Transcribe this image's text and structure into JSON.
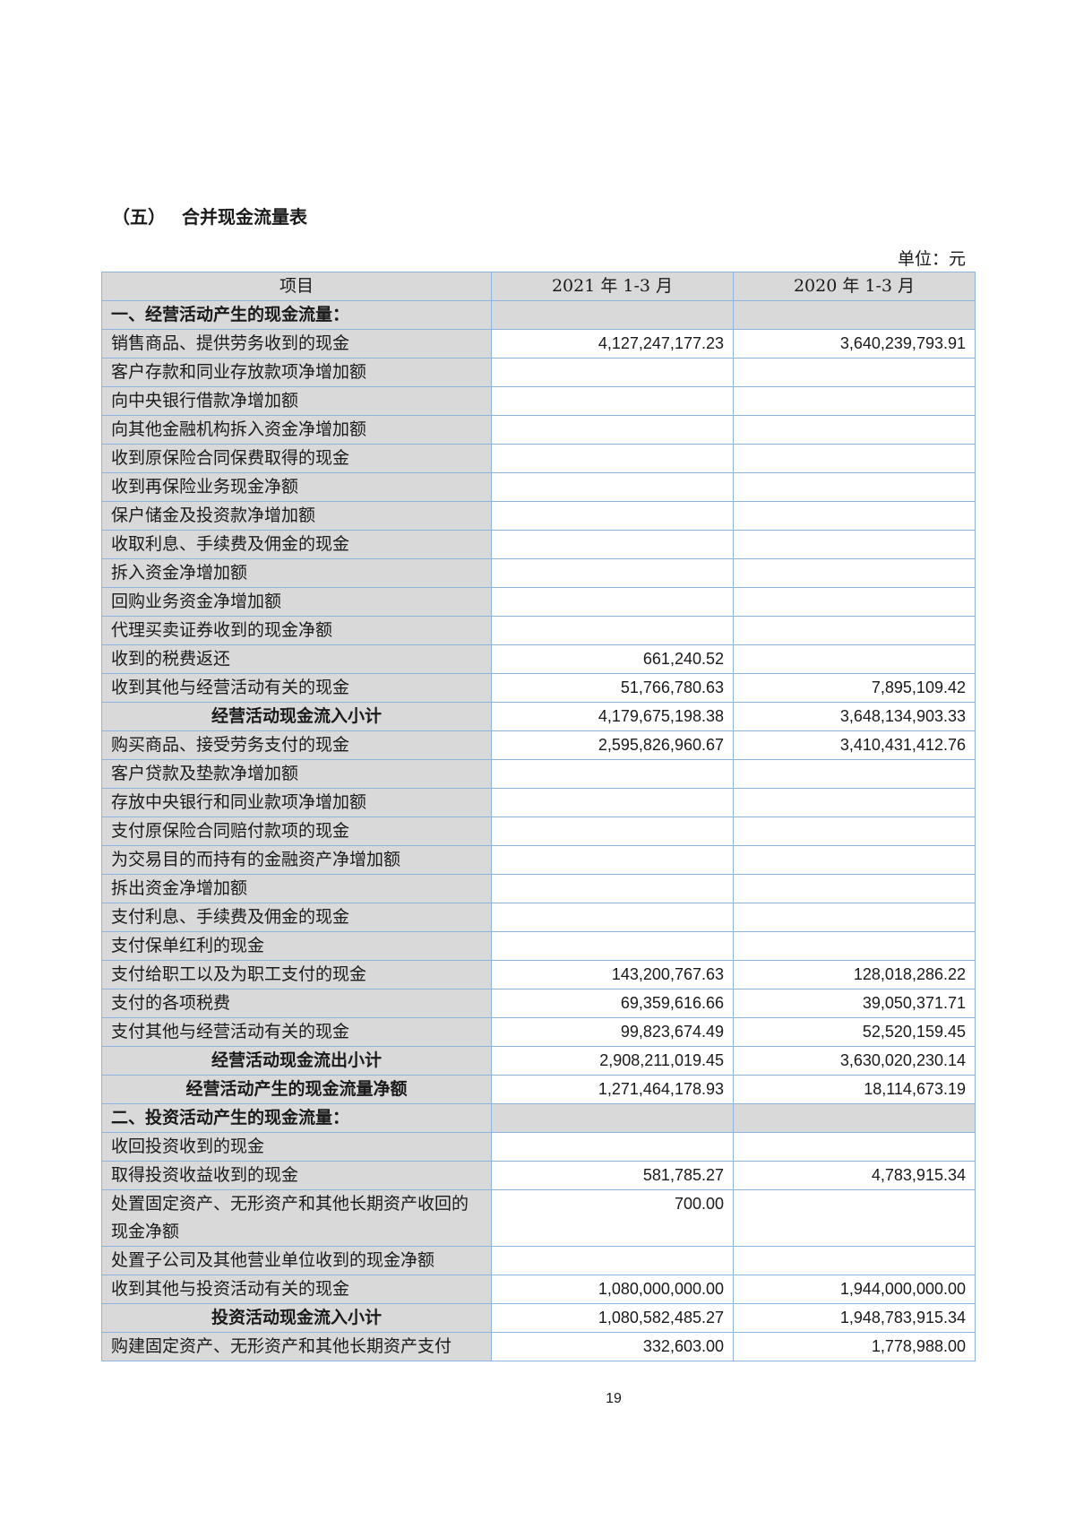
{
  "section_no": "（五）",
  "title": "合并现金流量表",
  "unit": "单位：元",
  "headers": [
    "项目",
    "2021 年 1-3 月",
    "2020 年 1-3 月"
  ],
  "rows": [
    {
      "type": "sec",
      "label": "一、经营活动产生的现金流量：",
      "v2021": "",
      "v2020": ""
    },
    {
      "type": "item",
      "label": "销售商品、提供劳务收到的现金",
      "v2021": "4,127,247,177.23",
      "v2020": "3,640,239,793.91"
    },
    {
      "type": "item",
      "label": "客户存款和同业存放款项净增加额",
      "v2021": "",
      "v2020": ""
    },
    {
      "type": "item",
      "label": "向中央银行借款净增加额",
      "v2021": "",
      "v2020": ""
    },
    {
      "type": "item",
      "label": "向其他金融机构拆入资金净增加额",
      "v2021": "",
      "v2020": ""
    },
    {
      "type": "item",
      "label": "收到原保险合同保费取得的现金",
      "v2021": "",
      "v2020": ""
    },
    {
      "type": "item",
      "label": "收到再保险业务现金净额",
      "v2021": "",
      "v2020": ""
    },
    {
      "type": "item",
      "label": "保户储金及投资款净增加额",
      "v2021": "",
      "v2020": ""
    },
    {
      "type": "item",
      "label": "收取利息、手续费及佣金的现金",
      "v2021": "",
      "v2020": ""
    },
    {
      "type": "item",
      "label": "拆入资金净增加额",
      "v2021": "",
      "v2020": ""
    },
    {
      "type": "item",
      "label": "回购业务资金净增加额",
      "v2021": "",
      "v2020": ""
    },
    {
      "type": "item",
      "label": "代理买卖证券收到的现金净额",
      "v2021": "",
      "v2020": ""
    },
    {
      "type": "item",
      "label": "收到的税费返还",
      "v2021": "661,240.52",
      "v2020": ""
    },
    {
      "type": "item",
      "label": "收到其他与经营活动有关的现金",
      "v2021": "51,766,780.63",
      "v2020": "7,895,109.42"
    },
    {
      "type": "sub",
      "label": "经营活动现金流入小计",
      "v2021": "4,179,675,198.38",
      "v2020": "3,648,134,903.33"
    },
    {
      "type": "item",
      "label": "购买商品、接受劳务支付的现金",
      "v2021": "2,595,826,960.67",
      "v2020": "3,410,431,412.76"
    },
    {
      "type": "item",
      "label": "客户贷款及垫款净增加额",
      "v2021": "",
      "v2020": ""
    },
    {
      "type": "item",
      "label": "存放中央银行和同业款项净增加额",
      "v2021": "",
      "v2020": ""
    },
    {
      "type": "item",
      "label": "支付原保险合同赔付款项的现金",
      "v2021": "",
      "v2020": ""
    },
    {
      "type": "item",
      "label": "为交易目的而持有的金融资产净增加额",
      "v2021": "",
      "v2020": ""
    },
    {
      "type": "item",
      "label": "拆出资金净增加额",
      "v2021": "",
      "v2020": ""
    },
    {
      "type": "item",
      "label": "支付利息、手续费及佣金的现金",
      "v2021": "",
      "v2020": ""
    },
    {
      "type": "item",
      "label": "支付保单红利的现金",
      "v2021": "",
      "v2020": ""
    },
    {
      "type": "item",
      "label": "支付给职工以及为职工支付的现金",
      "v2021": "143,200,767.63",
      "v2020": "128,018,286.22"
    },
    {
      "type": "item",
      "label": "支付的各项税费",
      "v2021": "69,359,616.66",
      "v2020": "39,050,371.71"
    },
    {
      "type": "item",
      "label": "支付其他与经营活动有关的现金",
      "v2021": "99,823,674.49",
      "v2020": "52,520,159.45"
    },
    {
      "type": "sub",
      "label": "经营活动现金流出小计",
      "v2021": "2,908,211,019.45",
      "v2020": "3,630,020,230.14"
    },
    {
      "type": "sub",
      "label": "经营活动产生的现金流量净额",
      "v2021": "1,271,464,178.93",
      "v2020": "18,114,673.19"
    },
    {
      "type": "sec",
      "label": "二、投资活动产生的现金流量：",
      "v2021": "",
      "v2020": ""
    },
    {
      "type": "item",
      "label": "收回投资收到的现金",
      "v2021": "",
      "v2020": ""
    },
    {
      "type": "item",
      "label": "取得投资收益收到的现金",
      "v2021": "581,785.27",
      "v2020": "4,783,915.34"
    },
    {
      "type": "dbl",
      "label": "处置固定资产、无形资产和其他长期资产收回的现金净额",
      "v2021": "700.00",
      "v2020": ""
    },
    {
      "type": "item",
      "label": "处置子公司及其他营业单位收到的现金净额",
      "v2021": "",
      "v2020": ""
    },
    {
      "type": "item",
      "label": "收到其他与投资活动有关的现金",
      "v2021": "1,080,000,000.00",
      "v2020": "1,944,000,000.00"
    },
    {
      "type": "sub",
      "label": "投资活动现金流入小计",
      "v2021": "1,080,582,485.27",
      "v2020": "1,948,783,915.34"
    },
    {
      "type": "item",
      "label": "购建固定资产、无形资产和其他长期资产支付",
      "v2021": "332,603.00",
      "v2020": "1,778,988.00"
    }
  ],
  "page_number": "19"
}
